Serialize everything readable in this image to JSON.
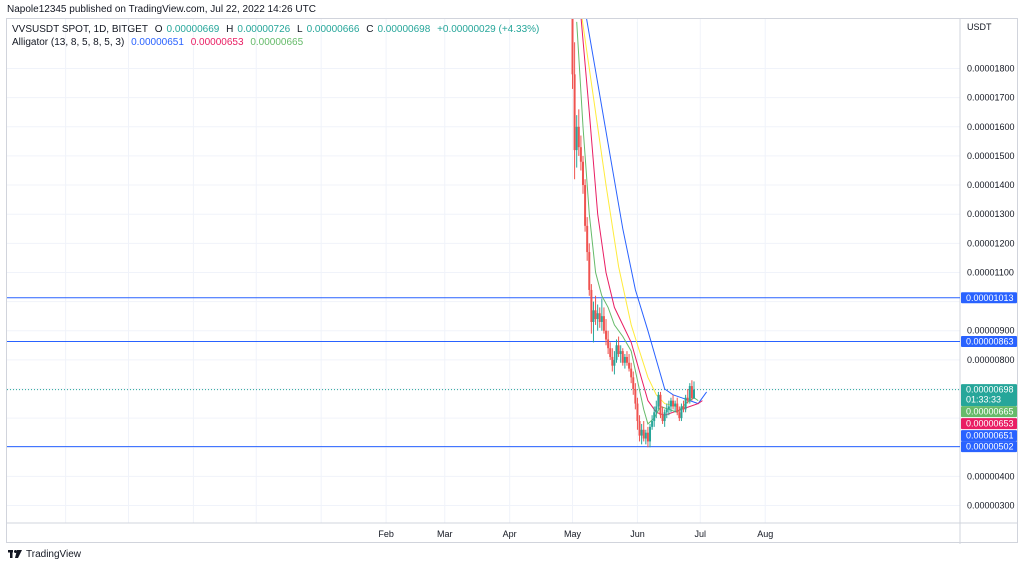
{
  "header": {
    "published_text": "Napole12345 published on TradingView.com, Jul 22, 2022 14:26 UTC"
  },
  "legend": {
    "symbol": "VVSUSDT SPOT, 1D, BITGET",
    "ohlc": [
      {
        "key": "O",
        "value": "0.00000669"
      },
      {
        "key": "H",
        "value": "0.00000726"
      },
      {
        "key": "L",
        "value": "0.00000666"
      },
      {
        "key": "C",
        "value": "0.00000698"
      }
    ],
    "change": "+0.00000029 (+4.33%)",
    "indicator_label": "Alligator (13, 8, 5, 8, 5, 3)",
    "jaw_value": "0.00000651",
    "teeth_value": "0.00000653",
    "lips_value": "0.00000665"
  },
  "footer": {
    "brand": "TradingView"
  },
  "colors": {
    "up": "#26a69a",
    "down": "#ef5350",
    "jaw": "#2962ff",
    "teeth": "#e91e63",
    "lips": "#66bb6a",
    "extra": "#ffeb3b",
    "hline": "#2962ff",
    "grid": "#f0f3fa"
  },
  "chart_data": {
    "type": "candlestick",
    "currency": "USDT",
    "y_ticks": [
      "0.00001800",
      "0.00001700",
      "0.00001600",
      "0.00001500",
      "0.00001400",
      "0.00001300",
      "0.00001200",
      "0.00001100",
      "0.00000900",
      "0.00000800",
      "0.00000400",
      "0.00000300"
    ],
    "y_tick_values": [
      18,
      17,
      16,
      15,
      14,
      13,
      12,
      11,
      9,
      8,
      4,
      3
    ],
    "x_ticks": [
      {
        "label": "Feb",
        "day": 31
      },
      {
        "label": "Mar",
        "day": 59
      },
      {
        "label": "Apr",
        "day": 90
      },
      {
        "label": "May",
        "day": 120
      },
      {
        "label": "Jun",
        "day": 151
      },
      {
        "label": "Jul",
        "day": 181
      },
      {
        "label": "Aug",
        "day": 212
      }
    ],
    "y_range": [
      2.4,
      19.7
    ],
    "x_range": [
      -150,
      305
    ],
    "y_units_note": "values in 1e-6 USDT",
    "horizontal_lines": [
      {
        "value": 10.13,
        "label": "0.00001013"
      },
      {
        "value": 8.63,
        "label": "0.00000863"
      },
      {
        "value": 5.02,
        "label": "0.00000502"
      }
    ],
    "price_label": {
      "value": 6.98,
      "label": "0.00000698",
      "countdown": "01:33:33"
    },
    "indicator_labels": [
      {
        "value": 6.65,
        "label": "0.00000665",
        "color": "#66bb6a"
      },
      {
        "value": 6.53,
        "label": "0.00000653",
        "color": "#e91e63"
      },
      {
        "value": 6.51,
        "label": "0.00000651",
        "color": "#2962ff"
      }
    ],
    "candles": [
      [
        120,
        19.7,
        20.5,
        17.3,
        17.8
      ],
      [
        121,
        17.8,
        18.9,
        14.2,
        15.2
      ],
      [
        122,
        15.2,
        16.4,
        14.6,
        16.0
      ],
      [
        123,
        16.0,
        16.6,
        15.0,
        15.3
      ],
      [
        124,
        15.3,
        15.7,
        14.5,
        14.8
      ],
      [
        125,
        14.8,
        15.0,
        13.7,
        14.0
      ],
      [
        126,
        14.0,
        14.2,
        12.4,
        12.6
      ],
      [
        127,
        12.6,
        12.9,
        11.4,
        11.7
      ],
      [
        128,
        11.7,
        12.0,
        10.2,
        10.4
      ],
      [
        129,
        10.4,
        10.6,
        8.9,
        9.3
      ],
      [
        130,
        9.3,
        10.0,
        8.6,
        9.7
      ],
      [
        131,
        9.7,
        10.2,
        9.2,
        9.4
      ],
      [
        132,
        9.4,
        9.9,
        9.0,
        9.6
      ],
      [
        133,
        9.6,
        9.8,
        9.1,
        9.3
      ],
      [
        134,
        9.3,
        10.1,
        9.0,
        9.5
      ],
      [
        135,
        9.5,
        9.8,
        8.9,
        9.0
      ],
      [
        136,
        9.0,
        9.4,
        8.5,
        8.7
      ],
      [
        137,
        8.7,
        9.0,
        8.2,
        8.4
      ],
      [
        138,
        8.4,
        8.6,
        8.0,
        8.1
      ],
      [
        139,
        8.1,
        8.4,
        7.6,
        7.8
      ],
      [
        140,
        7.8,
        8.3,
        7.5,
        8.0
      ],
      [
        141,
        8.0,
        8.7,
        7.9,
        8.5
      ],
      [
        142,
        8.5,
        8.8,
        8.1,
        8.2
      ],
      [
        143,
        8.2,
        8.5,
        7.9,
        8.3
      ],
      [
        144,
        8.3,
        8.4,
        7.8,
        7.9
      ],
      [
        145,
        7.9,
        8.2,
        7.7,
        8.1
      ],
      [
        146,
        8.1,
        8.3,
        7.8,
        7.9
      ],
      [
        147,
        7.9,
        8.2,
        7.6,
        7.7
      ],
      [
        148,
        7.7,
        7.9,
        7.2,
        7.4
      ],
      [
        149,
        7.4,
        7.6,
        6.8,
        7.0
      ],
      [
        150,
        7.0,
        7.2,
        6.3,
        6.5
      ],
      [
        151,
        6.5,
        6.7,
        5.6,
        5.9
      ],
      [
        152,
        5.9,
        6.1,
        5.2,
        5.4
      ],
      [
        153,
        5.4,
        5.8,
        5.1,
        5.6
      ],
      [
        154,
        5.6,
        5.9,
        5.2,
        5.3
      ],
      [
        155,
        5.3,
        5.6,
        5.1,
        5.5
      ],
      [
        156,
        5.5,
        5.7,
        5.0,
        5.2
      ],
      [
        157,
        5.2,
        5.8,
        5.0,
        5.7
      ],
      [
        158,
        5.7,
        6.1,
        5.6,
        5.9
      ],
      [
        159,
        5.9,
        6.4,
        5.7,
        6.2
      ],
      [
        160,
        6.2,
        6.6,
        6.0,
        6.4
      ],
      [
        161,
        6.4,
        6.9,
        6.3,
        6.8
      ],
      [
        162,
        6.8,
        6.9,
        6.0,
        6.1
      ],
      [
        163,
        6.1,
        6.4,
        5.8,
        5.9
      ],
      [
        164,
        5.9,
        6.3,
        5.7,
        6.2
      ],
      [
        165,
        6.2,
        6.5,
        6.0,
        6.3
      ],
      [
        166,
        6.3,
        6.6,
        6.1,
        6.4
      ],
      [
        167,
        6.4,
        6.7,
        6.2,
        6.6
      ],
      [
        168,
        6.6,
        6.8,
        6.3,
        6.4
      ],
      [
        169,
        6.4,
        6.6,
        6.2,
        6.5
      ],
      [
        170,
        6.5,
        6.7,
        6.1,
        6.2
      ],
      [
        171,
        6.2,
        6.4,
        5.9,
        6.0
      ],
      [
        172,
        6.0,
        6.5,
        5.9,
        6.4
      ],
      [
        173,
        6.4,
        6.6,
        6.2,
        6.3
      ],
      [
        174,
        6.3,
        6.8,
        6.2,
        6.7
      ],
      [
        175,
        6.7,
        7.0,
        6.5,
        6.6
      ],
      [
        176,
        6.6,
        7.2,
        6.5,
        7.1
      ],
      [
        177,
        7.1,
        7.3,
        6.6,
        6.69
      ],
      [
        178,
        6.69,
        7.26,
        6.66,
        6.98
      ]
    ],
    "alligator": {
      "jaw": {
        "name": "Jaw",
        "points": [
          [
            126,
            20.0
          ],
          [
            132,
            17.5
          ],
          [
            138,
            15.0
          ],
          [
            144,
            12.5
          ],
          [
            150,
            10.4
          ],
          [
            156,
            9.0
          ],
          [
            160,
            8.0
          ],
          [
            164,
            7.0
          ],
          [
            168,
            6.8
          ],
          [
            172,
            6.7
          ],
          [
            176,
            6.6
          ],
          [
            180,
            6.5
          ],
          [
            184,
            6.9
          ]
        ]
      },
      "teeth": {
        "name": "Teeth",
        "points": [
          [
            124,
            19.8
          ],
          [
            128,
            16.5
          ],
          [
            132,
            13.0
          ],
          [
            136,
            11.0
          ],
          [
            140,
            9.8
          ],
          [
            144,
            9.2
          ],
          [
            148,
            8.6
          ],
          [
            152,
            7.6
          ],
          [
            156,
            6.6
          ],
          [
            160,
            6.2
          ],
          [
            164,
            6.1
          ],
          [
            168,
            6.2
          ],
          [
            172,
            6.3
          ],
          [
            176,
            6.4
          ],
          [
            180,
            6.5
          ],
          [
            182,
            6.6
          ]
        ]
      },
      "lips": {
        "name": "Lips",
        "points": [
          [
            122,
            19.6
          ],
          [
            125,
            16.0
          ],
          [
            128,
            13.0
          ],
          [
            131,
            11.0
          ],
          [
            134,
            10.2
          ],
          [
            137,
            9.8
          ],
          [
            140,
            9.2
          ],
          [
            144,
            8.8
          ],
          [
            148,
            8.3
          ],
          [
            151,
            7.3
          ],
          [
            154,
            6.3
          ],
          [
            156,
            5.8
          ],
          [
            159,
            6.0
          ],
          [
            162,
            6.4
          ],
          [
            166,
            6.3
          ],
          [
            170,
            6.2
          ],
          [
            174,
            6.5
          ],
          [
            178,
            6.7
          ],
          [
            180,
            6.6
          ]
        ]
      },
      "extra": {
        "name": "",
        "points": [
          [
            124,
            20.0
          ],
          [
            130,
            17.0
          ],
          [
            136,
            14.0
          ],
          [
            142,
            11.2
          ],
          [
            148,
            9.2
          ],
          [
            152,
            8.3
          ],
          [
            156,
            7.4
          ],
          [
            160,
            6.8
          ],
          [
            164,
            6.5
          ],
          [
            170,
            6.4
          ]
        ]
      }
    }
  }
}
